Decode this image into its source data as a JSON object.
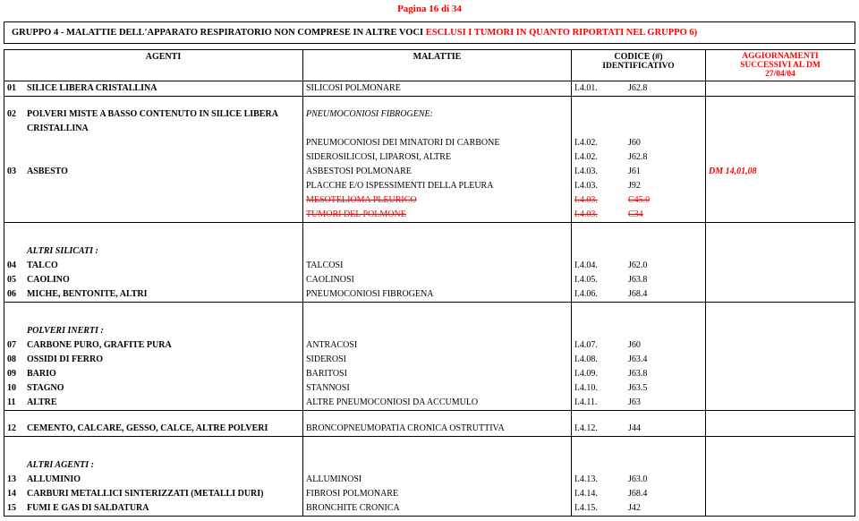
{
  "page_header": "Pagina 16 di 34",
  "group_title_pre": "GRUPPO 4 - MALATTIE DELL'APPARATO RESPIRATORIO NON COMPRESE IN ALTRE VOCI ",
  "group_title_excl": "ESCLUSI I TUMORI IN QUANTO RIPORTATI NEL GRUPPO 6)",
  "hdr": {
    "agenti": "AGENTI",
    "malattie": "MALATTIE",
    "codice": "CODICE (#)",
    "ident": "IDENTIFICATIVO",
    "agg_l1": "AGGIORNAMENTI",
    "agg_l2": "SUCCESSIVI AL DM",
    "agg_l3": "27/04/04"
  },
  "rows": [
    {
      "idx": "01",
      "ag": "SILICE LIBERA CRISTALLINA",
      "mal": "SILICOSI POLMONARE",
      "id": "I.4.01.",
      "cls": "J62.8",
      "agg": "",
      "sep": false,
      "b": true
    },
    {
      "idx": "",
      "ag": "",
      "mal": "",
      "id": "",
      "cls": "",
      "agg": "",
      "sep": true,
      "b": false
    },
    {
      "idx": "02",
      "ag": "POLVERI MISTE A BASSO CONTENUTO IN SILICE LIBERA",
      "mal": "PNEUMOCONIOSI FIBROGENE:",
      "id": "",
      "cls": "",
      "agg": "",
      "sep": false,
      "b": true,
      "mal_it": true
    },
    {
      "idx": "",
      "ag": "CRISTALLINA",
      "mal": "",
      "id": "",
      "cls": "",
      "agg": "",
      "sep": false,
      "b": true
    },
    {
      "idx": "",
      "ag": "",
      "mal": "PNEUMOCONIOSI DEI MINATORI DI CARBONE",
      "id": "I.4.02.",
      "cls": "J60",
      "agg": "",
      "sep": false,
      "b": false
    },
    {
      "idx": "",
      "ag": "",
      "mal": "SIDEROSILICOSI, LIPAROSI, ALTRE",
      "id": "I.4.02.",
      "cls": "J62.8",
      "agg": "",
      "sep": false,
      "b": false
    },
    {
      "idx": "03",
      "ag": "ASBESTO",
      "mal": "ASBESTOSI POLMONARE",
      "id": "I.4.03.",
      "cls": "J61",
      "agg": "DM 14,01,08",
      "sep": false,
      "b": true,
      "agg_red": true,
      "agg_b": true,
      "agg_it": true
    },
    {
      "idx": "",
      "ag": "",
      "mal": "PLACCHE E/O ISPESSIMENTI DELLA PLEURA",
      "id": "I.4.03.",
      "cls": "J92",
      "agg": "",
      "sep": false,
      "b": false
    },
    {
      "idx": "",
      "ag": "",
      "mal": "MESOTELIOMA PLEURICO",
      "id": "I.4.03.",
      "cls": "C45.0",
      "agg": "",
      "sep": false,
      "b": false,
      "red": true,
      "strike": true
    },
    {
      "idx": "",
      "ag": "",
      "mal": "TUMORI DEL POLMONE",
      "id": "I.4.03.",
      "cls": "C34",
      "agg": "",
      "sep": false,
      "b": false,
      "red": true,
      "strike": true
    },
    {
      "idx": "",
      "ag": "",
      "mal": "",
      "id": "",
      "cls": "",
      "agg": "",
      "sep": true,
      "b": false
    },
    {
      "idx": "",
      "ag": "",
      "mal": "",
      "id": "",
      "cls": "",
      "agg": "",
      "sep": false,
      "b": false,
      "spacer": true
    },
    {
      "idx": "",
      "ag": "ALTRI SILICATI :",
      "mal": "",
      "id": "",
      "cls": "",
      "agg": "",
      "sep": false,
      "b": true,
      "ag_it": true
    },
    {
      "idx": "04",
      "ag": "TALCO",
      "mal": "TALCOSI",
      "id": "I.4.04.",
      "cls": "J62.0",
      "agg": "",
      "sep": false,
      "b": true
    },
    {
      "idx": "05",
      "ag": "CAOLINO",
      "mal": "CAOLINOSI",
      "id": "I.4.05.",
      "cls": "J63.8",
      "agg": "",
      "sep": false,
      "b": true
    },
    {
      "idx": "06",
      "ag": "MICHE, BENTONITE, ALTRI",
      "mal": "PNEUMOCONIOSI FIBROGENA",
      "id": "I.4.06.",
      "cls": "J68.4",
      "agg": "",
      "sep": false,
      "b": true
    },
    {
      "idx": "",
      "ag": "",
      "mal": "",
      "id": "",
      "cls": "",
      "agg": "",
      "sep": true,
      "b": false
    },
    {
      "idx": "",
      "ag": "",
      "mal": "",
      "id": "",
      "cls": "",
      "agg": "",
      "sep": false,
      "b": false,
      "spacer": true
    },
    {
      "idx": "",
      "ag": "POLVERI INERTI :",
      "mal": "",
      "id": "",
      "cls": "",
      "agg": "",
      "sep": false,
      "b": true,
      "ag_it": true
    },
    {
      "idx": "07",
      "ag": "CARBONE PURO, GRAFITE PURA",
      "mal": "ANTRACOSI",
      "id": "I.4.07.",
      "cls": "J60",
      "agg": "",
      "sep": false,
      "b": true
    },
    {
      "idx": "08",
      "ag": "OSSIDI DI FERRO",
      "mal": "SIDEROSI",
      "id": "I.4.08.",
      "cls": "J63.4",
      "agg": "",
      "sep": false,
      "b": true
    },
    {
      "idx": "09",
      "ag": "BARIO",
      "mal": "BARITOSI",
      "id": "I.4.09.",
      "cls": "J63.8",
      "agg": "",
      "sep": false,
      "b": true
    },
    {
      "idx": "10",
      "ag": "STAGNO",
      "mal": "STANNOSI",
      "id": "I.4.10.",
      "cls": "J63.5",
      "agg": "",
      "sep": false,
      "b": true
    },
    {
      "idx": "11",
      "ag": "ALTRE",
      "mal": "ALTRE PNEUMOCONIOSI DA ACCUMULO",
      "id": "I.4.11.",
      "cls": "J63",
      "agg": "",
      "sep": false,
      "b": true
    },
    {
      "idx": "",
      "ag": "",
      "mal": "",
      "id": "",
      "cls": "",
      "agg": "",
      "sep": true,
      "b": false
    },
    {
      "idx": "12",
      "ag": "CEMENTO, CALCARE, GESSO, CALCE, ALTRE POLVERI",
      "mal": "BRONCOPNEUMOPATIA CRONICA OSTRUTTIVA",
      "id": "I.4.12.",
      "cls": "J44",
      "agg": "",
      "sep": false,
      "b": true
    },
    {
      "idx": "",
      "ag": "",
      "mal": "",
      "id": "",
      "cls": "",
      "agg": "",
      "sep": true,
      "b": false
    },
    {
      "idx": "",
      "ag": "",
      "mal": "",
      "id": "",
      "cls": "",
      "agg": "",
      "sep": false,
      "b": false,
      "spacer": true
    },
    {
      "idx": "",
      "ag": "ALTRI AGENTI :",
      "mal": "",
      "id": "",
      "cls": "",
      "agg": "",
      "sep": false,
      "b": true,
      "ag_it": true
    },
    {
      "idx": "13",
      "ag": "ALLUMINIO",
      "mal": "ALLUMINOSI",
      "id": "I.4.13.",
      "cls": "J63.0",
      "agg": "",
      "sep": false,
      "b": true
    },
    {
      "idx": "14",
      "ag": "CARBURI METALLICI SINTERIZZATI (METALLI DURI)",
      "mal": "FIBROSI POLMONARE",
      "id": "I.4.14.",
      "cls": "J68.4",
      "agg": "",
      "sep": false,
      "b": true
    },
    {
      "idx": "15",
      "ag": "FUMI E GAS DI SALDATURA",
      "mal": "BRONCHITE CRONICA",
      "id": "I.4.15.",
      "cls": "J42",
      "agg": "",
      "sep": false,
      "b": true
    }
  ]
}
